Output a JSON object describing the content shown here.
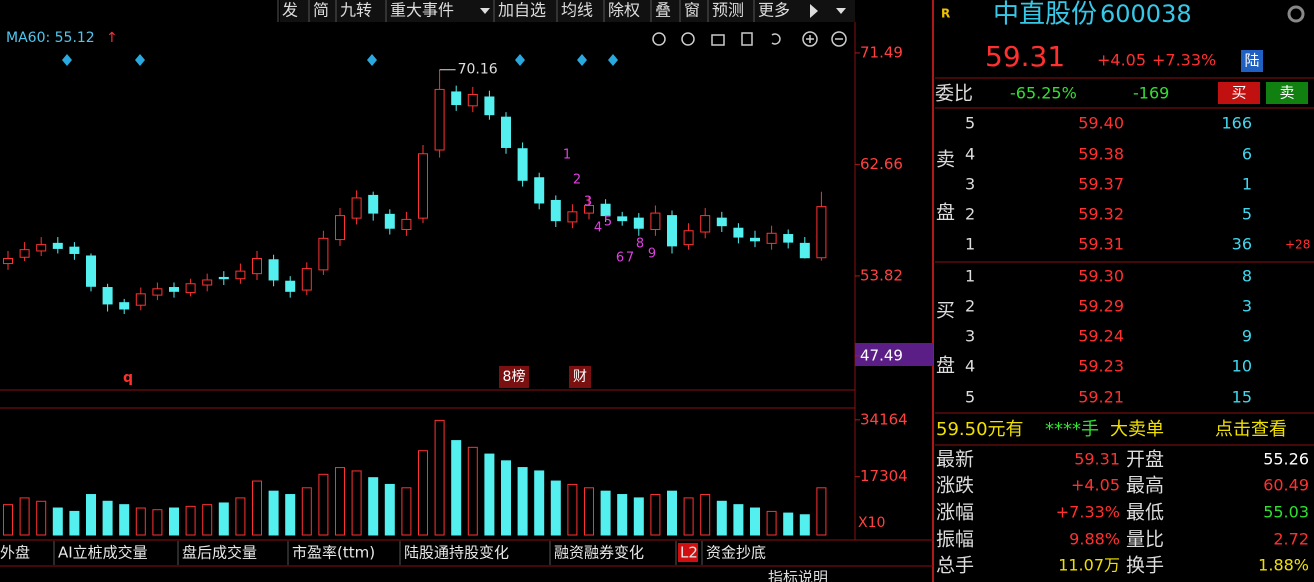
{
  "toolbar": [
    "发",
    "简",
    "九转",
    "重大事件",
    "加自选",
    "均线",
    "除权",
    "叠",
    "窗",
    "预测",
    "更多"
  ],
  "indicator": {
    "label": "MA60: 55.12",
    "arrow": "↑"
  },
  "chart_data": [
    {
      "type": "candlestick",
      "open": [
        54.8,
        55.3,
        55.8,
        56.4,
        56.1,
        55.4,
        52.9,
        51.7,
        51.5,
        52.3,
        52.9,
        52.5,
        53.1,
        53.7,
        53.6,
        54.0,
        55.1,
        53.4,
        52.7,
        54.3,
        56.7,
        58.4,
        60.2,
        58.7,
        57.5,
        58.4,
        63.8,
        68.4,
        67.3,
        68.0,
        66.4,
        63.9,
        61.6,
        59.8,
        58.1,
        58.8,
        59.5,
        58.5,
        58.4,
        57.5,
        58.6,
        56.3,
        57.3,
        58.4,
        57.6,
        56.8,
        56.4,
        57.1,
        56.4,
        55.26
      ],
      "high": [
        55.8,
        56.5,
        56.9,
        56.9,
        56.5,
        55.6,
        53.2,
        52.0,
        52.9,
        53.3,
        53.3,
        53.6,
        54.0,
        54.2,
        54.8,
        55.8,
        55.5,
        53.8,
        54.9,
        57.4,
        59.2,
        60.6,
        60.5,
        59.1,
        58.9,
        64.2,
        70.16,
        68.9,
        68.8,
        68.5,
        66.8,
        64.4,
        62.0,
        60.2,
        59.5,
        60.1,
        59.9,
        58.9,
        58.8,
        59.4,
        59.0,
        58.0,
        59.2,
        58.9,
        58.0,
        57.4,
        57.8,
        57.5,
        56.9,
        60.49
      ],
      "low": [
        54.3,
        55.0,
        55.4,
        55.6,
        55.1,
        52.6,
        51.0,
        50.8,
        51.1,
        51.9,
        52.1,
        52.2,
        52.6,
        53.1,
        53.2,
        53.5,
        53.0,
        52.1,
        52.3,
        53.9,
        56.2,
        57.9,
        58.2,
        57.1,
        57.0,
        58.0,
        63.2,
        66.9,
        66.8,
        66.2,
        63.5,
        60.9,
        59.1,
        57.7,
        57.6,
        58.3,
        58.1,
        57.8,
        57.0,
        57.0,
        55.6,
        55.9,
        56.8,
        57.3,
        56.4,
        56.1,
        55.9,
        56.0,
        55.2,
        55.03
      ],
      "close": [
        55.2,
        55.9,
        56.3,
        56.0,
        55.6,
        53.0,
        51.6,
        51.2,
        52.4,
        52.8,
        52.6,
        53.2,
        53.5,
        53.6,
        54.2,
        55.2,
        53.5,
        52.6,
        54.4,
        56.8,
        58.6,
        60.0,
        58.8,
        57.6,
        58.3,
        63.5,
        68.6,
        67.4,
        68.2,
        66.6,
        64.0,
        61.4,
        59.6,
        58.2,
        58.9,
        59.4,
        58.6,
        58.2,
        57.6,
        58.8,
        56.2,
        57.4,
        58.6,
        57.8,
        56.9,
        56.6,
        57.2,
        56.5,
        55.26,
        59.31
      ],
      "ylim": [
        44.78,
        72.12
      ],
      "yticks": [
        71.49,
        62.66,
        53.82,
        47.49
      ],
      "high_label": "70.16",
      "annotations": [
        "q",
        "8榜",
        "财"
      ],
      "td_counts": [
        "1",
        "2",
        "3",
        "4",
        "5",
        "6",
        "7",
        "8",
        "9"
      ]
    },
    {
      "type": "bar",
      "values": [
        9000,
        11000,
        10000,
        8000,
        7000,
        12000,
        10000,
        9000,
        8000,
        7500,
        8000,
        8500,
        9000,
        9500,
        11000,
        16000,
        13000,
        12000,
        14000,
        18000,
        20000,
        19000,
        17000,
        15000,
        14000,
        25000,
        34000,
        28000,
        26000,
        24000,
        22000,
        20000,
        19000,
        16000,
        15000,
        14000,
        13000,
        12000,
        11000,
        12000,
        13000,
        11000,
        12000,
        10000,
        9000,
        8000,
        7000,
        6500,
        6000,
        14000
      ],
      "ylim": [
        0,
        35000
      ],
      "yticks": [
        34164,
        17304
      ],
      "scale_label": "X10"
    }
  ],
  "quote": {
    "flag": "R",
    "name": "中直股份",
    "code": "600038",
    "price": "59.31",
    "change": "+4.05",
    "pct": "+7.33%",
    "market": "陆"
  },
  "order_ratio": {
    "label": "委比",
    "ratio": "-65.25%",
    "diff": "-169",
    "buy": "买",
    "sell": "卖"
  },
  "sell_side": {
    "label": [
      "卖",
      "盘"
    ],
    "rows": [
      [
        "5",
        "59.40",
        "166"
      ],
      [
        "4",
        "59.38",
        "6"
      ],
      [
        "3",
        "59.37",
        "1"
      ],
      [
        "2",
        "59.32",
        "5"
      ],
      [
        "1",
        "59.31",
        "36"
      ]
    ],
    "change": "+28"
  },
  "buy_side": {
    "label": [
      "买",
      "盘"
    ],
    "rows": [
      [
        "1",
        "59.30",
        "8"
      ],
      [
        "2",
        "59.29",
        "3"
      ],
      [
        "3",
        "59.24",
        "9"
      ],
      [
        "4",
        "59.23",
        "10"
      ],
      [
        "5",
        "59.21",
        "15"
      ]
    ]
  },
  "banner": [
    "59.50元有",
    "****手",
    "大卖单",
    "点击查看"
  ],
  "stats": [
    [
      "最新",
      "59.31",
      "开盘",
      "55.26"
    ],
    [
      "涨跌",
      "+4.05",
      "最高",
      "60.49"
    ],
    [
      "涨幅",
      "+7.33%",
      "最低",
      "55.03"
    ],
    [
      "振幅",
      "9.88%",
      "量比",
      "2.72"
    ],
    [
      "总手",
      "11.07万",
      "换手",
      "1.88%"
    ]
  ],
  "tabs": [
    "外盘",
    "AI立桩成交量",
    "盘后成交量",
    "市盈率(ttm)",
    "陆股通持股变化",
    "融资融券变化",
    "L2",
    "资金抄底"
  ],
  "footer": "指标说明"
}
